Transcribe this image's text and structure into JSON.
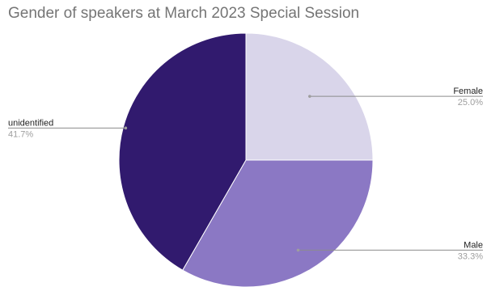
{
  "chart_data": {
    "type": "pie",
    "title": "Gender of speakers at March 2023 Special Session",
    "slices": [
      {
        "label": "Female",
        "value": 25.0,
        "percent_label": "25.0%",
        "color": "#d9d5ea"
      },
      {
        "label": "Male",
        "value": 33.3,
        "percent_label": "33.3%",
        "color": "#8b78c4"
      },
      {
        "label": "unidentified",
        "value": 41.7,
        "percent_label": "41.7%",
        "color": "#311a6e"
      }
    ],
    "legend": "none",
    "start_angle": "12 o'clock",
    "direction": "clockwise"
  }
}
